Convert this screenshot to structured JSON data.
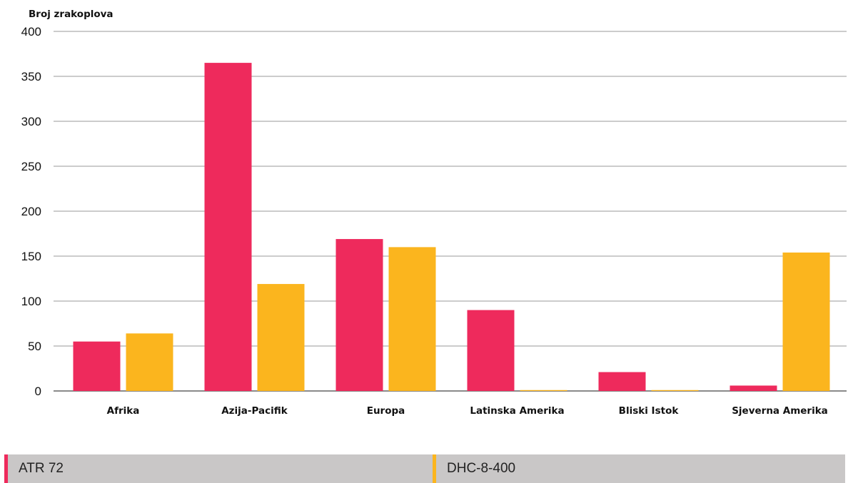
{
  "chart_data": {
    "type": "bar",
    "title": "",
    "ylabel": "Broj zrakoplova",
    "xlabel": "",
    "ylim": [
      0,
      400
    ],
    "yticks": [
      0,
      50,
      100,
      150,
      200,
      250,
      300,
      350,
      400
    ],
    "grid": true,
    "legend_position": "bottom",
    "categories": [
      "Afrika",
      "Azija-Pacifik",
      "Europa",
      "Latinska Amerika",
      "Bliski Istok",
      "Sjeverna Amerika"
    ],
    "series": [
      {
        "name": "ATR 72",
        "color": "#ee2a5c",
        "values": [
          55,
          365,
          169,
          90,
          21,
          6
        ]
      },
      {
        "name": "DHC-8-400",
        "color": "#fbb51e",
        "values": [
          64,
          119,
          160,
          1,
          1,
          154
        ]
      }
    ]
  }
}
